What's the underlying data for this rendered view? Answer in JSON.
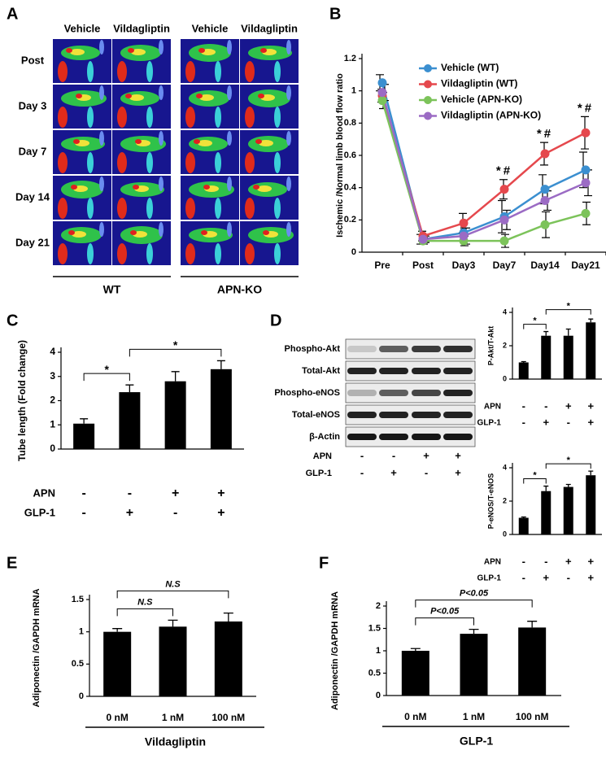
{
  "image_panel": {
    "panel": "A",
    "columns": [
      "Vehicle",
      "Vildagliptin",
      "Vehicle",
      "Vildagliptin"
    ],
    "rows": [
      "Post",
      "Day 3",
      "Day 7",
      "Day 14",
      "Day 21"
    ],
    "groups": [
      "WT",
      "APN-KO"
    ]
  },
  "blot": {
    "panel": "D",
    "rows": [
      "Phospho-Akt",
      "Total-Akt",
      "Phospho-eNOS",
      "Total-eNOS",
      "β-Actin"
    ],
    "condition_rows": [
      {
        "name": "APN",
        "values": [
          "-",
          "-",
          "+",
          "+"
        ]
      },
      {
        "name": "GLP-1",
        "values": [
          "-",
          "+",
          "-",
          "+"
        ]
      }
    ]
  },
  "chart_data": [
    {
      "type": "line",
      "panel": "B",
      "y_label": "Ischemic /Normal limb blood flow ratio",
      "categories": [
        "Pre",
        "Post",
        "Day3",
        "Day7",
        "Day14",
        "Day21"
      ],
      "ylim": [
        0,
        1.2
      ],
      "yticks": [
        0,
        0.2,
        0.4,
        0.6,
        0.8,
        1,
        1.2
      ],
      "legend": "upper left",
      "annotations": [
        null,
        null,
        null,
        "*#",
        "*#",
        "*#"
      ],
      "series": [
        {
          "name": "Vehicle (WT)",
          "color": "#3b8fd0",
          "values": [
            1.05,
            0.08,
            0.12,
            0.22,
            0.39,
            0.51
          ],
          "errors": [
            0.05,
            0.03,
            0.05,
            0.1,
            0.09,
            0.11
          ]
        },
        {
          "name": "Vildagliptin (WT)",
          "color": "#e5484d",
          "values": [
            0.97,
            0.1,
            0.18,
            0.39,
            0.61,
            0.74
          ],
          "errors": [
            0.04,
            0.03,
            0.06,
            0.06,
            0.07,
            0.1
          ]
        },
        {
          "name": "Vehicle (APN-KO)",
          "color": "#7cc35a",
          "values": [
            0.94,
            0.07,
            0.07,
            0.07,
            0.17,
            0.24
          ],
          "errors": [
            0.05,
            0.02,
            0.03,
            0.04,
            0.08,
            0.07
          ]
        },
        {
          "name": "Vildagliptin (APN-KO)",
          "color": "#9b6bc4",
          "values": [
            0.99,
            0.08,
            0.1,
            0.2,
            0.32,
            0.43
          ],
          "errors": [
            0.05,
            0.02,
            0.05,
            0.06,
            0.06,
            0.08
          ]
        }
      ]
    },
    {
      "type": "bar",
      "panel": "C",
      "y_label": "Tube length (Fold change)",
      "color": "#000000",
      "values": [
        1.05,
        2.35,
        2.8,
        3.3
      ],
      "errors": [
        0.2,
        0.3,
        0.4,
        0.35
      ],
      "ylim": [
        0,
        4
      ],
      "yticks": [
        0,
        1,
        2,
        3,
        4
      ],
      "condition_rows": [
        {
          "name": "APN",
          "values": [
            "-",
            "-",
            "+",
            "+"
          ]
        },
        {
          "name": "GLP-1",
          "values": [
            "-",
            "+",
            "-",
            "+"
          ]
        }
      ],
      "brackets": [
        {
          "from": 0,
          "to": 1,
          "label": "*"
        },
        {
          "from": 1,
          "to": 3,
          "label": "*"
        }
      ]
    },
    {
      "type": "bar",
      "y_label": "P-Akt/T-Akt",
      "color": "#000000",
      "values": [
        1.0,
        2.6,
        2.6,
        3.4
      ],
      "errors": [
        0.05,
        0.25,
        0.4,
        0.2
      ],
      "ylim": [
        0,
        4
      ],
      "yticks": [
        0,
        2,
        4
      ],
      "condition_rows": [
        {
          "name": "APN",
          "values": [
            "-",
            "-",
            "+",
            "+"
          ]
        },
        {
          "name": "GLP-1",
          "values": [
            "-",
            "+",
            "-",
            "+"
          ]
        }
      ],
      "brackets": [
        {
          "from": 0,
          "to": 1,
          "label": "*"
        },
        {
          "from": 1,
          "to": 3,
          "label": "*"
        }
      ]
    },
    {
      "type": "bar",
      "y_label": "P-eNOS/T-eNOS",
      "color": "#000000",
      "values": [
        1.0,
        2.6,
        2.85,
        3.55
      ],
      "errors": [
        0.05,
        0.3,
        0.15,
        0.25
      ],
      "ylim": [
        0,
        4
      ],
      "yticks": [
        0,
        2,
        4
      ],
      "condition_rows": [
        {
          "name": "APN",
          "values": [
            "-",
            "-",
            "+",
            "+"
          ]
        },
        {
          "name": "GLP-1",
          "values": [
            "-",
            "+",
            "-",
            "+"
          ]
        }
      ],
      "brackets": [
        {
          "from": 0,
          "to": 1,
          "label": "*"
        },
        {
          "from": 1,
          "to": 3,
          "label": "*"
        }
      ]
    },
    {
      "type": "bar",
      "panel": "E",
      "y_label": "Adiponectin /GAPDH mRNA",
      "x_label": "Vildagliptin",
      "color": "#000000",
      "categories": [
        "0 nM",
        "1 nM",
        "100 nM"
      ],
      "values": [
        1.0,
        1.08,
        1.16
      ],
      "errors": [
        0.05,
        0.1,
        0.13
      ],
      "ylim": [
        0,
        1.5
      ],
      "yticks": [
        0,
        0.5,
        1,
        1.5
      ],
      "brackets": [
        {
          "from": 0,
          "to": 1,
          "label": "N.S"
        },
        {
          "from": 0,
          "to": 2,
          "label": "N.S"
        }
      ]
    },
    {
      "type": "bar",
      "panel": "F",
      "y_label": "Adiponectin /GAPDH mRNA",
      "x_label": "GLP-1",
      "color": "#000000",
      "categories": [
        "0 nM",
        "1 nM",
        "100 nM"
      ],
      "values": [
        1.0,
        1.38,
        1.52
      ],
      "errors": [
        0.05,
        0.1,
        0.14
      ],
      "ylim": [
        0,
        2
      ],
      "yticks": [
        0,
        0.5,
        1,
        1.5,
        2
      ],
      "brackets": [
        {
          "from": 0,
          "to": 1,
          "label": "P<0.05"
        },
        {
          "from": 0,
          "to": 2,
          "label": "P<0.05"
        }
      ]
    }
  ]
}
